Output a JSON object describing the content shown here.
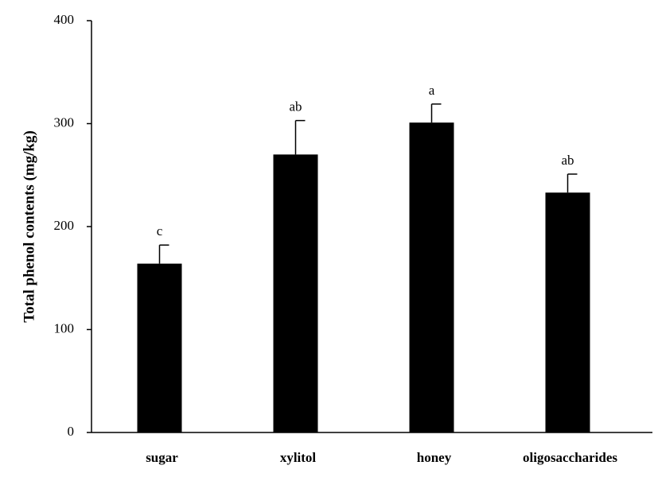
{
  "chart_data": {
    "type": "bar",
    "ylabel": "Total phenol contents (mg/kg)",
    "categories": [
      "sugar",
      "xylitol",
      "honey",
      "oligosaccharides"
    ],
    "values": [
      164,
      270,
      301,
      233
    ],
    "errors": [
      18,
      33,
      18,
      18
    ],
    "annotations": [
      "c",
      "ab",
      "a",
      "ab"
    ],
    "color": "#000000",
    "ylim": [
      0,
      400
    ],
    "yticks": [
      0,
      100,
      200,
      300,
      400
    ],
    "grid": false
  }
}
